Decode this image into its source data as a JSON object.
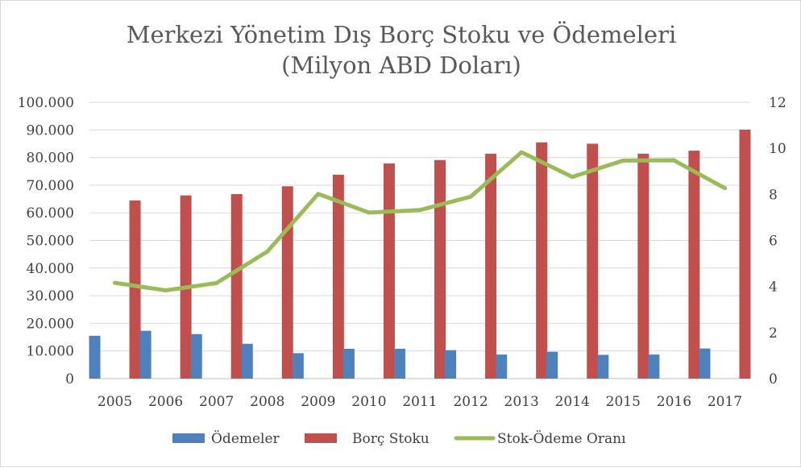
{
  "chart_data": {
    "type": "bar",
    "title": "Merkezi Yönetim Dış Borç Stoku ve Ödemeleri",
    "subtitle": "(Milyon ABD Doları)",
    "categories": [
      "2005",
      "2006",
      "2007",
      "2008",
      "2009",
      "2010",
      "2011",
      "2012",
      "2013",
      "2014",
      "2015",
      "2016",
      "2017"
    ],
    "series": [
      {
        "name": "Ödemeler",
        "type": "bar",
        "axis": "left",
        "color": "#4f81bd",
        "values": [
          15500,
          17300,
          16100,
          12600,
          9200,
          10800,
          10800,
          10300,
          8700,
          9700,
          8600,
          8700,
          10900
        ]
      },
      {
        "name": "Borç Stoku",
        "type": "bar",
        "axis": "left",
        "color": "#c0504d",
        "values": [
          64500,
          66300,
          66800,
          69600,
          73800,
          77900,
          79100,
          81400,
          85500,
          85000,
          81400,
          82500,
          90100
        ]
      },
      {
        "name": "Stok-Ödeme Oranı",
        "type": "line",
        "axis": "right",
        "color": "#9bbb59",
        "values": [
          4.16,
          3.83,
          4.15,
          5.52,
          8.02,
          7.21,
          7.32,
          7.9,
          9.83,
          8.76,
          9.47,
          9.48,
          8.27
        ]
      }
    ],
    "y_left": {
      "min": 0,
      "max": 100000,
      "step": 10000,
      "tick_labels": [
        "0",
        "10.000",
        "20.000",
        "30.000",
        "40.000",
        "50.000",
        "60.000",
        "70.000",
        "80.000",
        "90.000",
        "100.000"
      ]
    },
    "y_right": {
      "min": 0,
      "max": 12,
      "step": 2,
      "tick_labels": [
        "0",
        "2",
        "4",
        "6",
        "8",
        "10",
        "12"
      ]
    },
    "grid": true,
    "legend_position": "bottom"
  }
}
